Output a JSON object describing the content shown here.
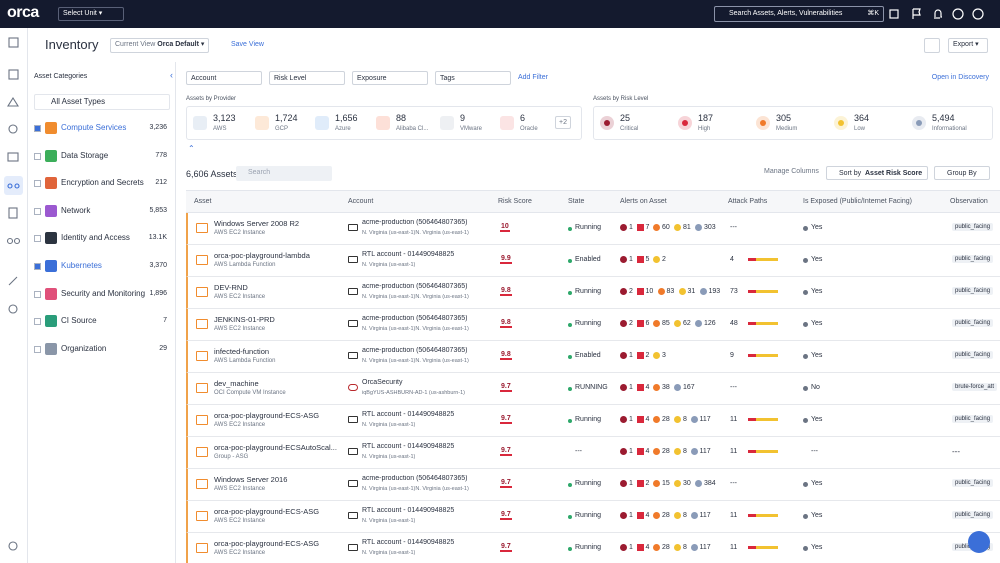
{
  "topbar": {
    "logo": "orca",
    "unit_select": "Select Unit",
    "search": "Search Assets, Alerts, Vulnerabilities",
    "shortcut": "⌘K"
  },
  "header": {
    "title": "Inventory",
    "view_label": "Current View",
    "view_name": "Orca Default",
    "save_view": "Save View",
    "export": "Export"
  },
  "categories": {
    "title": "Asset Categories",
    "all": "All Asset Types",
    "items": [
      {
        "name": "Compute Services",
        "count": "3,236",
        "checked": true,
        "color": "#f08c2e"
      },
      {
        "name": "Data Storage",
        "count": "778",
        "checked": false,
        "color": "#3cae5a"
      },
      {
        "name": "Encryption and Secrets",
        "count": "212",
        "checked": false,
        "color": "#e0643a"
      },
      {
        "name": "Network",
        "count": "5,853",
        "checked": false,
        "color": "#9b59d0"
      },
      {
        "name": "Identity and Access",
        "count": "13.1K",
        "checked": false,
        "color": "#2c3440"
      },
      {
        "name": "Kubernetes",
        "count": "3,370",
        "checked": true,
        "color": "#3b6fd8"
      },
      {
        "name": "Security and Monitoring",
        "count": "1,896",
        "checked": false,
        "color": "#e0507a"
      },
      {
        "name": "CI Source",
        "count": "7",
        "checked": false,
        "color": "#2a9d7a"
      },
      {
        "name": "Organization",
        "count": "29",
        "checked": false,
        "color": "#8a96a8"
      }
    ]
  },
  "filters": {
    "items": [
      "Account",
      "Risk Level",
      "Exposure",
      "Tags"
    ],
    "add": "Add Filter",
    "discovery": "Open in Discovery"
  },
  "providers": {
    "title": "Assets by Provider",
    "items": [
      {
        "count": "3,123",
        "name": "AWS"
      },
      {
        "count": "1,724",
        "name": "GCP"
      },
      {
        "count": "1,656",
        "name": "Azure"
      },
      {
        "count": "88",
        "name": "Alibaba Cl..."
      },
      {
        "count": "9",
        "name": "VMware"
      },
      {
        "count": "6",
        "name": "Oracle"
      }
    ],
    "more": "+2"
  },
  "risk_levels": {
    "title": "Assets by Risk Level",
    "items": [
      {
        "count": "25",
        "name": "Critical",
        "color": "#9b1b30"
      },
      {
        "count": "187",
        "name": "High",
        "color": "#d9283c"
      },
      {
        "count": "305",
        "name": "Medium",
        "color": "#f07a2a"
      },
      {
        "count": "364",
        "name": "Low",
        "color": "#f2c230"
      },
      {
        "count": "5,494",
        "name": "Informational",
        "color": "#8a9bb8"
      }
    ]
  },
  "toolbar": {
    "total": "6,606 Assets",
    "search": "Search",
    "manage": "Manage Columns",
    "sort_label": "Sort by",
    "sort_value": "Asset Risk Score",
    "group": "Group By"
  },
  "table": {
    "columns": [
      "Asset",
      "Account",
      "Risk Score",
      "State",
      "Alerts on Asset",
      "Attack Paths",
      "Is Exposed (Public/Internet Facing)",
      "Observation"
    ],
    "rows": [
      {
        "asset": "Windows Server 2008 R2",
        "type": "AWS EC2 Instance",
        "account": "acme-production (506464807365)",
        "region": "N. Virginia (us-east-1)N. Virginia (us-east-1)",
        "risk": "10",
        "state": "Running",
        "alerts": [
          {
            "level": "critical",
            "count": "1"
          },
          {
            "level": "high",
            "count": "7"
          },
          {
            "level": "medium",
            "count": "60"
          },
          {
            "level": "low",
            "count": "81"
          },
          {
            "level": "info",
            "count": "303"
          }
        ],
        "attack_paths": "---",
        "exposed": "Yes",
        "observation": "public_facing"
      },
      {
        "asset": "orca-poc-playground-lambda",
        "type": "AWS Lambda Function",
        "account": "RTL account - 014490948825",
        "region": "N. Virginia (us-east-1)",
        "risk": "9.9",
        "state": "Enabled",
        "alerts": [
          {
            "level": "critical",
            "count": "1"
          },
          {
            "level": "high",
            "count": "5"
          },
          {
            "level": "low",
            "count": "2"
          }
        ],
        "attack_paths": "4",
        "exposed": "Yes",
        "observation": "public_facing"
      },
      {
        "asset": "DEV-RND",
        "type": "AWS EC2 Instance",
        "account": "acme-production (506464807365)",
        "region": "N. Virginia (us-east-1)N. Virginia (us-east-1)",
        "risk": "9.8",
        "state": "Running",
        "alerts": [
          {
            "level": "critical",
            "count": "2"
          },
          {
            "level": "high",
            "count": "10"
          },
          {
            "level": "medium",
            "count": "83"
          },
          {
            "level": "low",
            "count": "31"
          },
          {
            "level": "info",
            "count": "193"
          }
        ],
        "attack_paths": "73",
        "exposed": "Yes",
        "observation": "public_facing"
      },
      {
        "asset": "JENKINS-01-PRD",
        "type": "AWS EC2 Instance",
        "account": "acme-production (506464807365)",
        "region": "N. Virginia (us-east-1)N. Virginia (us-east-1)",
        "risk": "9.8",
        "state": "Running",
        "alerts": [
          {
            "level": "critical",
            "count": "2"
          },
          {
            "level": "high",
            "count": "6"
          },
          {
            "level": "medium",
            "count": "85"
          },
          {
            "level": "low",
            "count": "62"
          },
          {
            "level": "info",
            "count": "126"
          }
        ],
        "attack_paths": "48",
        "exposed": "Yes",
        "observation": "public_facing"
      },
      {
        "asset": "infected-function",
        "type": "AWS Lambda Function",
        "account": "acme-production (506464807365)",
        "region": "N. Virginia (us-east-1)N. Virginia (us-east-1)",
        "risk": "9.8",
        "state": "Enabled",
        "alerts": [
          {
            "level": "critical",
            "count": "1"
          },
          {
            "level": "high",
            "count": "2"
          },
          {
            "level": "low",
            "count": "3"
          }
        ],
        "attack_paths": "9",
        "exposed": "Yes",
        "observation": "public_facing"
      },
      {
        "asset": "dev_machine",
        "type": "OCI Compute VM Instance",
        "account": "OrcaSecurity",
        "region": "iqBgYUS-ASHBURN-AD-1 (us-ashburn-1)",
        "risk": "9.7",
        "state": "RUNNING",
        "alerts": [
          {
            "level": "critical",
            "count": "1"
          },
          {
            "level": "high",
            "count": "4"
          },
          {
            "level": "medium",
            "count": "38"
          },
          {
            "level": "info",
            "count": "167"
          }
        ],
        "attack_paths": "---",
        "exposed": "No",
        "observation": "brute-force_att"
      },
      {
        "asset": "orca-poc-playground-ECS-ASG",
        "type": "AWS EC2 Instance",
        "account": "RTL account - 014490948825",
        "region": "N. Virginia (us-east-1)",
        "risk": "9.7",
        "state": "Running",
        "alerts": [
          {
            "level": "critical",
            "count": "1"
          },
          {
            "level": "high",
            "count": "4"
          },
          {
            "level": "medium",
            "count": "28"
          },
          {
            "level": "low",
            "count": "8"
          },
          {
            "level": "info",
            "count": "117"
          }
        ],
        "attack_paths": "11",
        "exposed": "Yes",
        "observation": "public_facing"
      },
      {
        "asset": "orca-poc-playground-ECSAutoScal...",
        "type": "Group - ASG",
        "account": "RTL account - 014490948825",
        "region": "N. Virginia (us-east-1)",
        "risk": "9.7",
        "state": "---",
        "alerts": [
          {
            "level": "critical",
            "count": "1"
          },
          {
            "level": "high",
            "count": "4"
          },
          {
            "level": "medium",
            "count": "28"
          },
          {
            "level": "low",
            "count": "8"
          },
          {
            "level": "info",
            "count": "117"
          }
        ],
        "attack_paths": "11",
        "exposed": "---",
        "observation": "---"
      },
      {
        "asset": "Windows Server 2016",
        "type": "AWS EC2 Instance",
        "account": "acme-production (506464807365)",
        "region": "N. Virginia (us-east-1)N. Virginia (us-east-1)",
        "risk": "9.7",
        "state": "Running",
        "alerts": [
          {
            "level": "critical",
            "count": "1"
          },
          {
            "level": "high",
            "count": "2"
          },
          {
            "level": "medium",
            "count": "15"
          },
          {
            "level": "low",
            "count": "30"
          },
          {
            "level": "info",
            "count": "384"
          }
        ],
        "attack_paths": "---",
        "exposed": "Yes",
        "observation": "public_facing"
      },
      {
        "asset": "orca-poc-playground-ECS-ASG",
        "type": "AWS EC2 Instance",
        "account": "RTL account - 014490948825",
        "region": "N. Virginia (us-east-1)",
        "risk": "9.7",
        "state": "Running",
        "alerts": [
          {
            "level": "critical",
            "count": "1"
          },
          {
            "level": "high",
            "count": "4"
          },
          {
            "level": "medium",
            "count": "28"
          },
          {
            "level": "low",
            "count": "8"
          },
          {
            "level": "info",
            "count": "117"
          }
        ],
        "attack_paths": "11",
        "exposed": "Yes",
        "observation": "public_facing"
      },
      {
        "asset": "orca-poc-playground-ECS-ASG",
        "type": "AWS EC2 Instance",
        "account": "RTL account - 014490948825",
        "region": "N. Virginia (us-east-1)",
        "risk": "9.7",
        "state": "Running",
        "alerts": [
          {
            "level": "critical",
            "count": "1"
          },
          {
            "level": "high",
            "count": "4"
          },
          {
            "level": "medium",
            "count": "28"
          },
          {
            "level": "low",
            "count": "8"
          },
          {
            "level": "info",
            "count": "117"
          }
        ],
        "attack_paths": "11",
        "exposed": "Yes",
        "observation": "public_facing"
      }
    ]
  }
}
